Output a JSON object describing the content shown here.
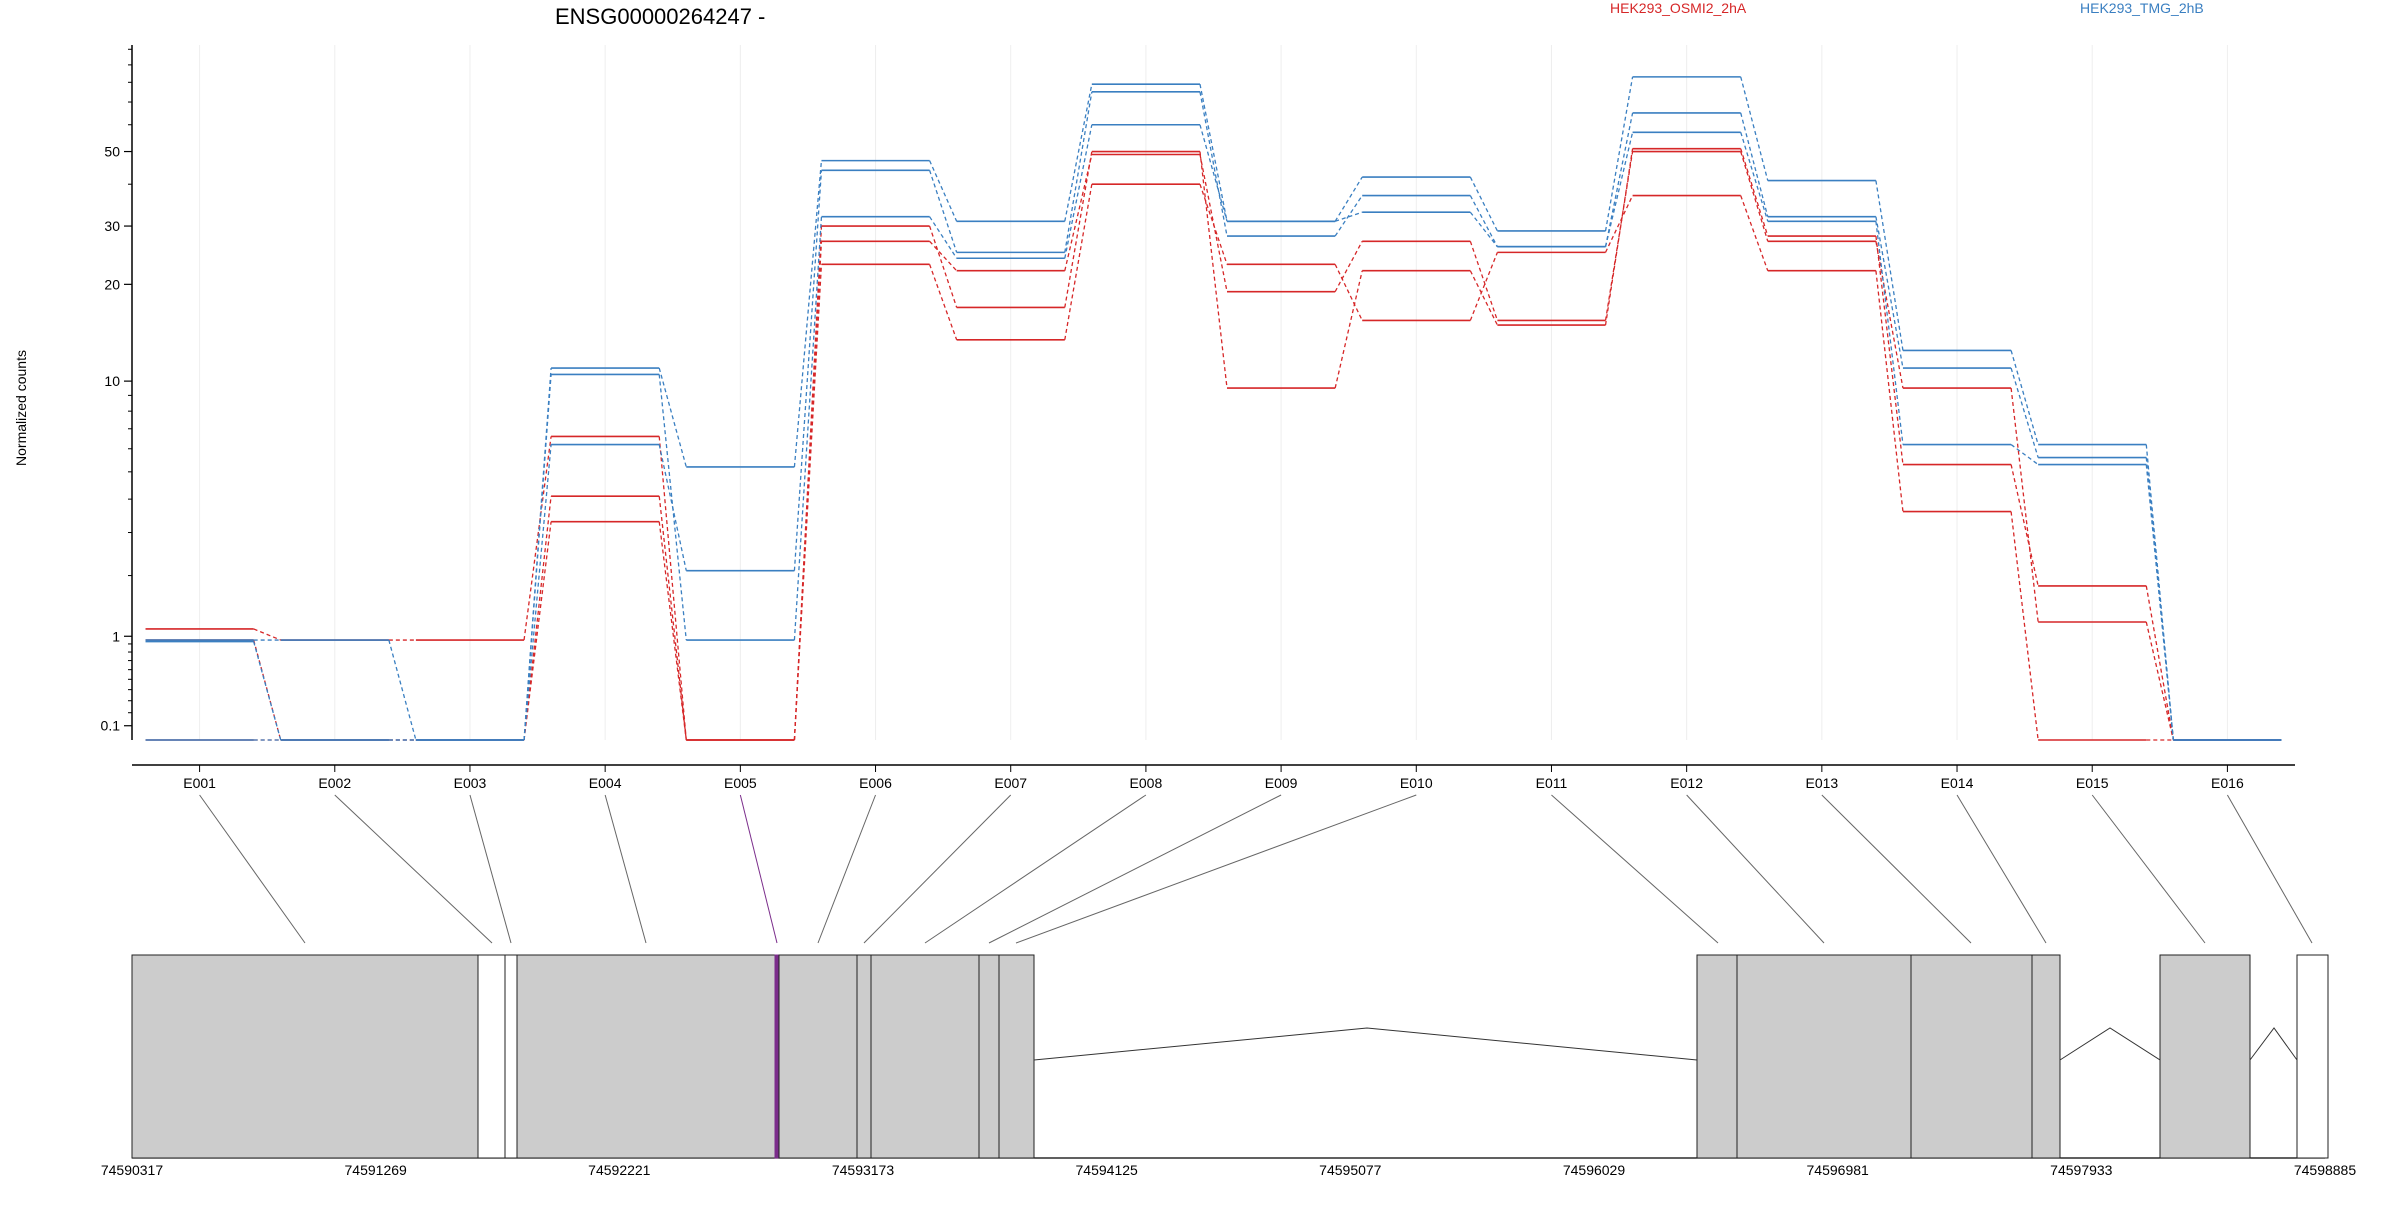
{
  "title": "ENSG00000264247 -",
  "ylabel": "Normalized counts",
  "colors": {
    "HEK293_OSMI2_2hA": "#d62728",
    "HEK293_TMG_2hB": "#3a7fc1",
    "exon": "#cccccc",
    "highlight": "#7b2d8b"
  },
  "chart_data": {
    "type": "line",
    "title": "ENSG00000264247 -",
    "xlabel": "",
    "ylabel": "Normalized counts",
    "y_scale": "log1p",
    "y_ticks": [
      0.1,
      1,
      10,
      20,
      30,
      50
    ],
    "legend": [
      "HEK293_OSMI2_2hA",
      "HEK293_TMG_2hB"
    ],
    "legend_placement": "top",
    "grid": "vertical",
    "categories": [
      "E001",
      "E002",
      "E003",
      "E004",
      "E005",
      "E006",
      "E007",
      "E008",
      "E009",
      "E010",
      "E011",
      "E012",
      "E013",
      "E014",
      "E015",
      "E016"
    ],
    "series": [
      {
        "name": "HEK293_OSMI2_2hA",
        "values": [
          1.1,
          0.95,
          0.95,
          6.6,
          0,
          30,
          17,
          50,
          9.5,
          22,
          15,
          51,
          28,
          5.3,
          1.8,
          0
        ]
      },
      {
        "name": "HEK293_OSMI2_2hA",
        "values": [
          0.95,
          0,
          0,
          4.1,
          0,
          27,
          22,
          49,
          19,
          27,
          15.5,
          50,
          27,
          9.5,
          1.2,
          0
        ]
      },
      {
        "name": "HEK293_OSMI2_2hA",
        "values": [
          0,
          0,
          0,
          3.3,
          0,
          23,
          13.5,
          40,
          23,
          15.5,
          25,
          37,
          22,
          3.6,
          0,
          0
        ]
      },
      {
        "name": "HEK293_TMG_2hB",
        "values": [
          0.95,
          0.95,
          0,
          11,
          5.2,
          47,
          31,
          79,
          31,
          42,
          29,
          83,
          41,
          12.5,
          6.2,
          0
        ]
      },
      {
        "name": "HEK293_TMG_2hB",
        "values": [
          0.93,
          0,
          0,
          6.2,
          2.1,
          44,
          25,
          75,
          28,
          37,
          26,
          65,
          32,
          11,
          5.6,
          0
        ]
      },
      {
        "name": "HEK293_TMG_2hB",
        "values": [
          0,
          0,
          0,
          10.5,
          0.95,
          32,
          24,
          60,
          31,
          33,
          26,
          57,
          31,
          6.2,
          5.3,
          0
        ]
      }
    ],
    "genomic_ticks": [
      "74590317",
      "74591269",
      "74592221",
      "74593173",
      "74594125",
      "74595077",
      "74596029",
      "74596981",
      "74597933",
      "74598885"
    ],
    "highlighted_exon": "E005"
  }
}
